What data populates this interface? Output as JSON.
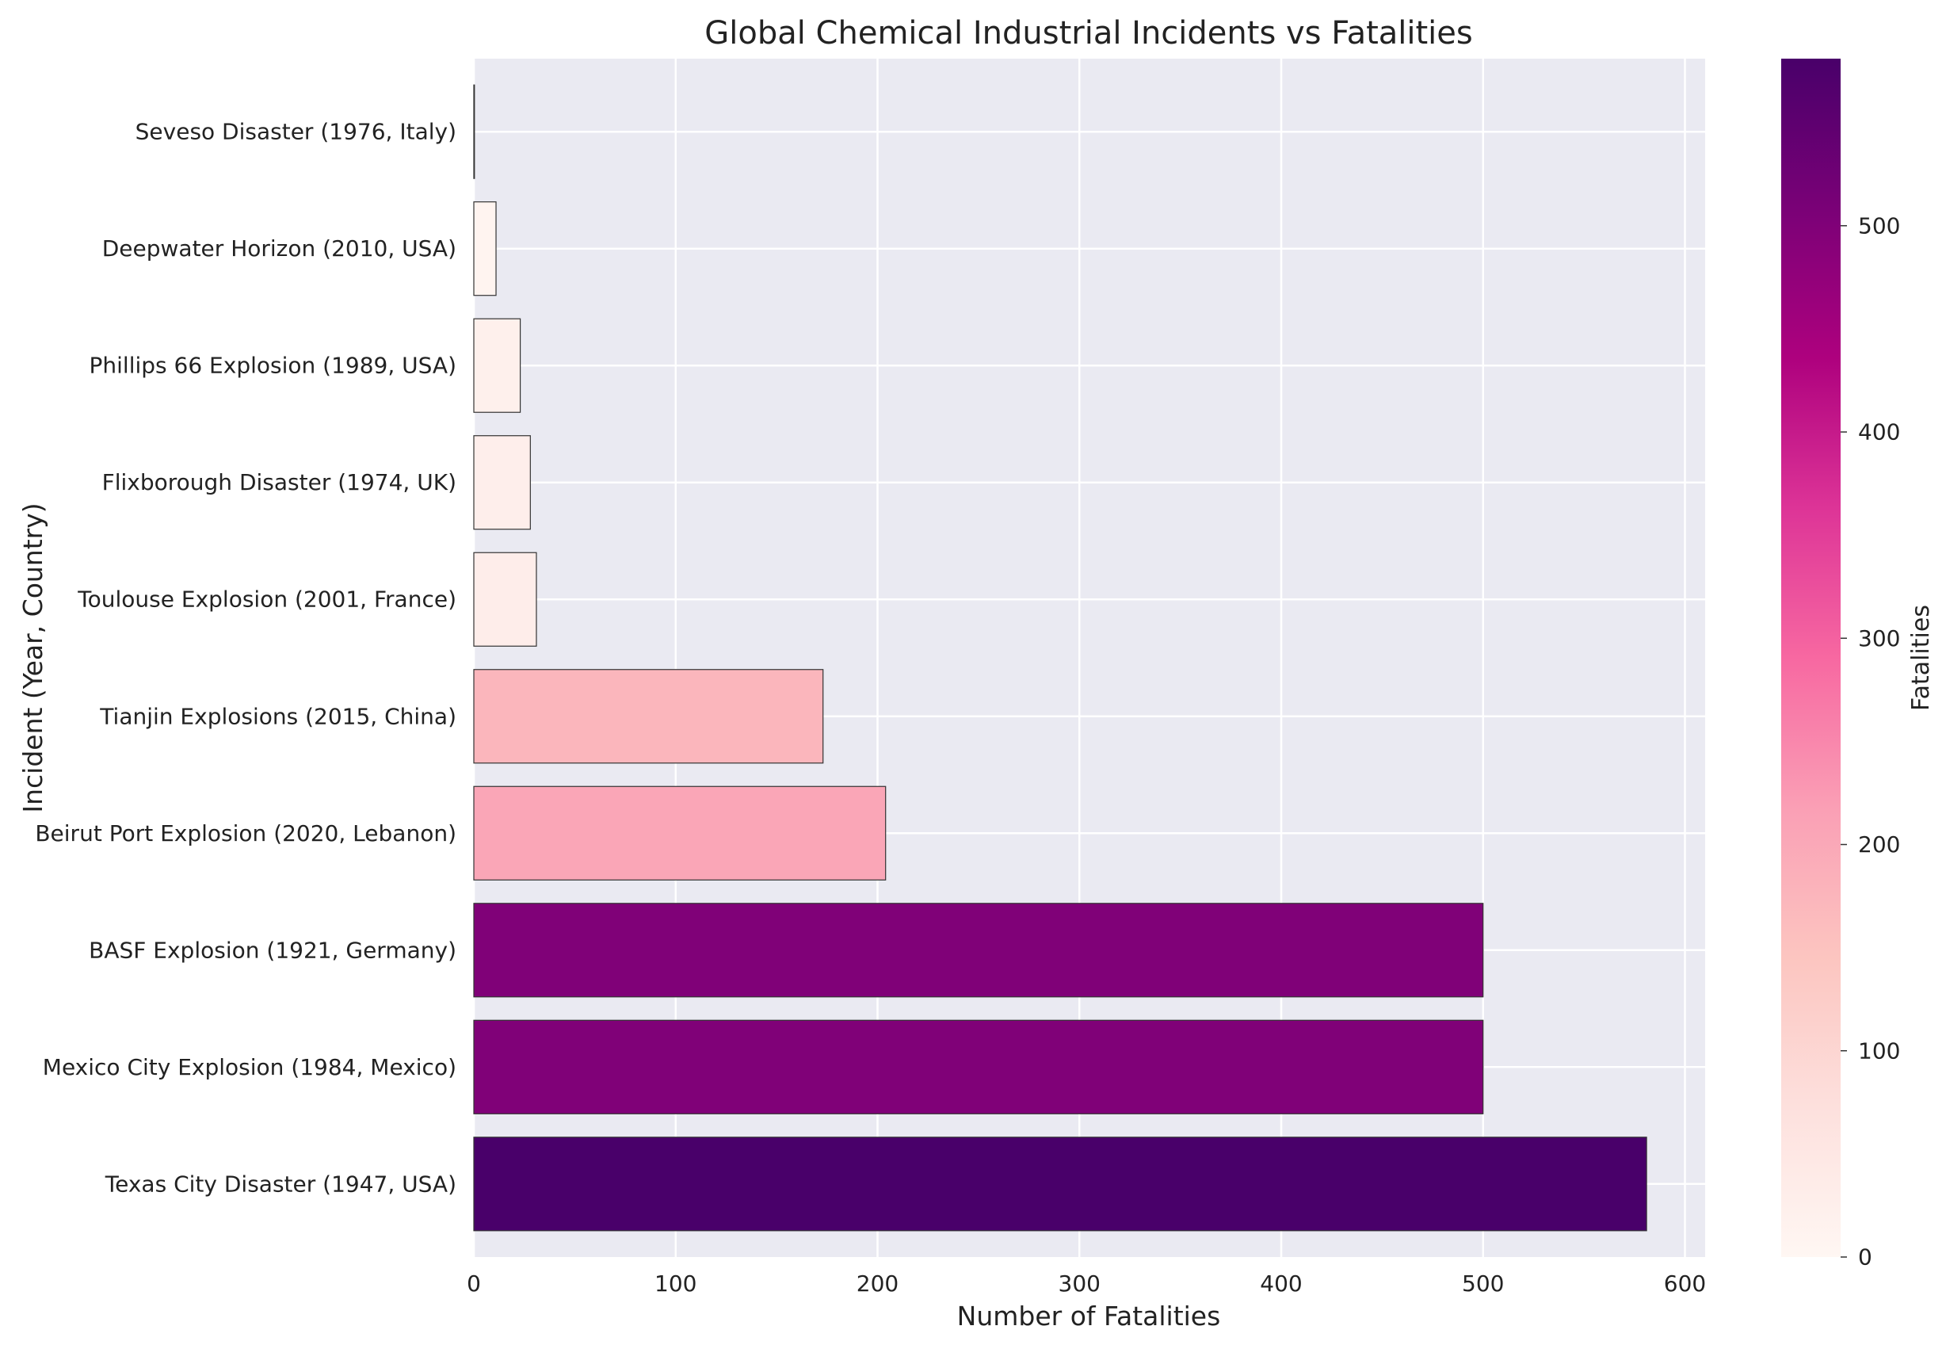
{
  "chart_data": {
    "type": "bar",
    "orientation": "horizontal",
    "title": "Global Chemical Industrial Incidents vs Fatalities",
    "xlabel": "Number of Fatalities",
    "ylabel": "Incident (Year, Country)",
    "xlim": [
      0,
      610
    ],
    "xticks": [
      0,
      100,
      200,
      300,
      400,
      500,
      600
    ],
    "grid": true,
    "categories": [
      "Texas City Disaster (1947, USA)",
      "Mexico City Explosion (1984, Mexico)",
      "BASF Explosion (1921, Germany)",
      "Beirut Port Explosion (2020, Lebanon)",
      "Tianjin Explosions (2015, China)",
      "Toulouse Explosion (2001, France)",
      "Flixborough Disaster (1974, UK)",
      "Phillips 66 Explosion (1989, USA)",
      "Deepwater Horizon (2010, USA)",
      "Seveso Disaster (1976, Italy)"
    ],
    "values": [
      581,
      500,
      500,
      204,
      173,
      31,
      28,
      23,
      11,
      0
    ],
    "colorbar": {
      "label": "Fatalities",
      "range": [
        0,
        581
      ],
      "ticks": [
        0,
        100,
        200,
        300,
        400,
        500
      ],
      "colormap": [
        "#fff7f3",
        "#fde0dd",
        "#fcc5c0",
        "#fa9fb5",
        "#f768a1",
        "#dd3497",
        "#ae017e",
        "#7a0177",
        "#49006a"
      ]
    }
  },
  "colors": {
    "plot_background": "#eaeaf2",
    "grid": "#ffffff",
    "bar_edge": "#333333"
  }
}
